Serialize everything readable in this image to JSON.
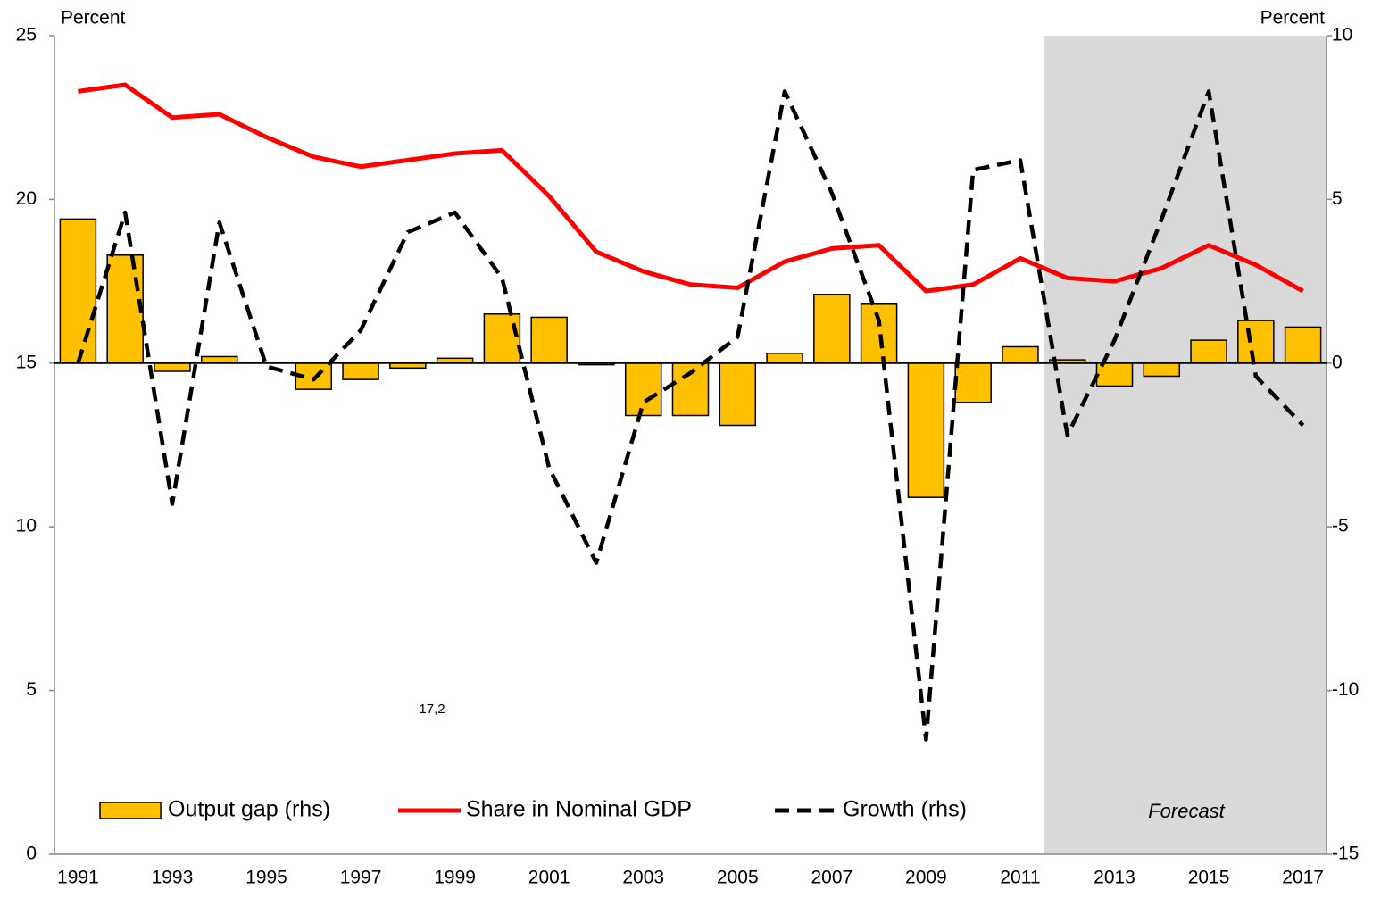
{
  "chart_data": {
    "type": "combo",
    "categories": [
      "1991",
      null,
      "1993",
      null,
      "1995",
      null,
      "1997",
      null,
      "1999",
      null,
      "2001",
      null,
      "2003",
      null,
      "2005",
      null,
      "2007",
      null,
      "2009",
      null,
      "2011",
      null,
      "2013",
      null,
      "2015",
      null,
      "2017"
    ],
    "ylabel": "Percent",
    "y2label": "Percent",
    "ylim": [
      0,
      25
    ],
    "yticks": [
      0,
      5,
      10,
      15,
      20,
      25
    ],
    "y2lim": [
      -15,
      10
    ],
    "y2ticks": [
      -15,
      -10,
      -5,
      0,
      5,
      10
    ],
    "series": [
      {
        "name": "Output gap (rhs)",
        "type": "bar",
        "axis": "y2",
        "color": "#ffc000",
        "values": [
          4.4,
          3.3,
          -0.25,
          0.2,
          0,
          -0.8,
          -0.5,
          -0.15,
          0.15,
          1.5,
          1.4,
          -0.05,
          -1.6,
          -1.6,
          -1.9,
          0.3,
          2.1,
          1.8,
          -4.1,
          -1.2,
          0.5,
          0.1,
          -0.7,
          -0.4,
          0.7,
          1.3,
          1.1
        ]
      },
      {
        "name": "Share in Nominal GDP",
        "type": "line",
        "color": "#ff0000",
        "values": [
          23.3,
          23.5,
          22.5,
          22.6,
          21.9,
          21.3,
          21.0,
          21.2,
          21.4,
          21.5,
          20.1,
          18.4,
          17.8,
          17.4,
          17.3,
          18.1,
          18.5,
          18.6,
          17.2,
          17.4,
          18.2,
          17.6,
          17.5,
          17.9,
          18.6,
          18.0,
          17.2
        ]
      },
      {
        "name": "Growth (rhs)",
        "type": "line",
        "dash": true,
        "axis": "y2",
        "color": "#000000",
        "values": [
          0,
          4.6,
          -4.3,
          4.3,
          -0.1,
          -0.5,
          1.0,
          4.0,
          4.6,
          2.6,
          -3.2,
          -6.1,
          -1.2,
          -0.3,
          0.8,
          8.3,
          5.2,
          1.3,
          -11.5,
          5.9,
          6.2,
          -2.2,
          0.7,
          4.4,
          8.3,
          -0.4,
          -1.9
        ]
      }
    ],
    "shaded_region": {
      "label": "Forecast",
      "start": 21
    },
    "annotation": "17,2"
  }
}
